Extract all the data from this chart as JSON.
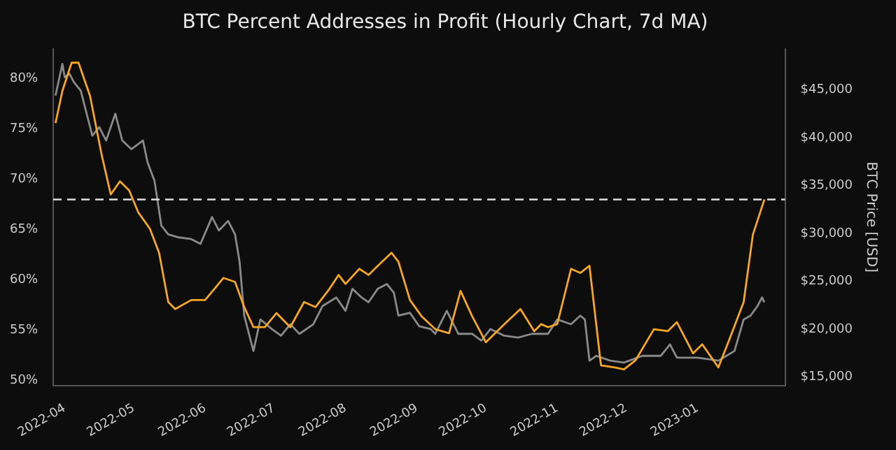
{
  "chart_data": {
    "type": "line",
    "title": "BTC Percent Addresses in Profit (Hourly Chart, 7d MA)",
    "y2label": "BTC Price [USD]",
    "xlim": [
      "2022-03-27",
      "2023-02-08"
    ],
    "xticks": [
      "2022-04",
      "2022-05",
      "2022-06",
      "2022-07",
      "2022-08",
      "2022-09",
      "2022-10",
      "2022-11",
      "2022-12",
      "2023-01"
    ],
    "ylim": [
      49.5,
      83
    ],
    "yticks": [
      {
        "value": 50,
        "label": "50%"
      },
      {
        "value": 55,
        "label": "55%"
      },
      {
        "value": 60,
        "label": "60%"
      },
      {
        "value": 65,
        "label": "65%"
      },
      {
        "value": 70,
        "label": "70%"
      },
      {
        "value": 75,
        "label": "75%"
      },
      {
        "value": 80,
        "label": "80%"
      }
    ],
    "y2lim": [
      14100,
      49300
    ],
    "y2ticks": [
      {
        "value": 15000,
        "label": "$15,000"
      },
      {
        "value": 20000,
        "label": "$20,000"
      },
      {
        "value": 25000,
        "label": "$25,000"
      },
      {
        "value": 30000,
        "label": "$30,000"
      },
      {
        "value": 35000,
        "label": "$35,000"
      },
      {
        "value": 40000,
        "label": "$40,000"
      },
      {
        "value": 45000,
        "label": "$45,000"
      }
    ],
    "grid": false,
    "legend": false,
    "marker": "none",
    "ref_lines": [
      {
        "axis": "y",
        "value": 68,
        "label": null,
        "color": "#e0e0e0",
        "line_style": "dashed"
      }
    ],
    "series": [
      {
        "color": "#f5a623",
        "axis": "y",
        "x": [
          "2022-03-28",
          "2022-03-31",
          "2022-04-04",
          "2022-04-07",
          "2022-04-12",
          "2022-04-17",
          "2022-04-21",
          "2022-04-25",
          "2022-04-29",
          "2022-05-03",
          "2022-05-08",
          "2022-05-12",
          "2022-05-16",
          "2022-05-19",
          "2022-05-26",
          "2022-06-01",
          "2022-06-05",
          "2022-06-09",
          "2022-06-14",
          "2022-06-18",
          "2022-06-22",
          "2022-06-27",
          "2022-07-02",
          "2022-07-08",
          "2022-07-14",
          "2022-07-19",
          "2022-07-25",
          "2022-07-29",
          "2022-08-01",
          "2022-08-07",
          "2022-08-11",
          "2022-08-15",
          "2022-08-21",
          "2022-08-24",
          "2022-08-29",
          "2022-09-03",
          "2022-09-09",
          "2022-09-15",
          "2022-09-20",
          "2022-09-25",
          "2022-10-01",
          "2022-10-09",
          "2022-10-16",
          "2022-10-22",
          "2022-10-25",
          "2022-10-28",
          "2022-11-01",
          "2022-11-07",
          "2022-11-11",
          "2022-11-15",
          "2022-11-20",
          "2022-11-26",
          "2022-11-30",
          "2022-12-05",
          "2022-12-13",
          "2022-12-19",
          "2022-12-23",
          "2022-12-30",
          "2023-01-03",
          "2023-01-10",
          "2023-01-15",
          "2023-01-21",
          "2023-01-25",
          "2023-01-30"
        ],
        "values": [
          75.6,
          78.8,
          81.6,
          81.6,
          78.3,
          72.5,
          68.5,
          69.8,
          68.9,
          66.7,
          65.1,
          62.7,
          57.8,
          57.1,
          58.0,
          58.0,
          59.1,
          60.2,
          59.8,
          57.3,
          55.3,
          55.3,
          56.7,
          55.3,
          57.8,
          57.3,
          59.1,
          60.5,
          59.6,
          61.1,
          60.5,
          61.4,
          62.7,
          61.8,
          58.0,
          56.4,
          55.1,
          54.7,
          58.9,
          56.4,
          53.8,
          55.6,
          57.1,
          54.9,
          55.6,
          55.3,
          55.6,
          61.1,
          60.7,
          61.4,
          51.5,
          51.3,
          51.1,
          52.0,
          55.1,
          54.9,
          55.8,
          52.7,
          53.6,
          51.3,
          54.2,
          57.8,
          64.5,
          68.0
        ]
      },
      {
        "color": "#8a8a8a",
        "axis": "y2",
        "x": [
          "2022-03-28",
          "2022-03-31",
          "2022-04-01",
          "2022-04-03",
          "2022-04-05",
          "2022-04-08",
          "2022-04-10",
          "2022-04-13",
          "2022-04-16",
          "2022-04-19",
          "2022-04-23",
          "2022-04-26",
          "2022-04-30",
          "2022-05-05",
          "2022-05-07",
          "2022-05-10",
          "2022-05-13",
          "2022-05-16",
          "2022-05-20",
          "2022-05-26",
          "2022-05-30",
          "2022-06-04",
          "2022-06-07",
          "2022-06-11",
          "2022-06-14",
          "2022-06-16",
          "2022-06-18",
          "2022-06-22",
          "2022-06-25",
          "2022-06-30",
          "2022-07-04",
          "2022-07-08",
          "2022-07-12",
          "2022-07-18",
          "2022-07-22",
          "2022-07-28",
          "2022-08-01",
          "2022-08-04",
          "2022-08-08",
          "2022-08-11",
          "2022-08-15",
          "2022-08-19",
          "2022-08-22",
          "2022-08-24",
          "2022-08-29",
          "2022-09-02",
          "2022-09-07",
          "2022-09-09",
          "2022-09-14",
          "2022-09-19",
          "2022-09-25",
          "2022-09-29",
          "2022-10-03",
          "2022-10-09",
          "2022-10-15",
          "2022-10-21",
          "2022-10-28",
          "2022-11-01",
          "2022-11-07",
          "2022-11-11",
          "2022-11-13",
          "2022-11-15",
          "2022-11-18",
          "2022-11-24",
          "2022-11-30",
          "2022-12-08",
          "2022-12-16",
          "2022-12-20",
          "2022-12-23",
          "2023-01-01",
          "2023-01-10",
          "2023-01-17",
          "2023-01-21",
          "2023-01-24",
          "2023-01-27",
          "2023-01-29",
          "2023-01-30"
        ],
        "values": [
          44400,
          47700,
          46300,
          46700,
          45800,
          44900,
          43000,
          40200,
          41100,
          39700,
          42500,
          39700,
          38800,
          39700,
          37400,
          35500,
          30800,
          29900,
          29600,
          29400,
          28900,
          31700,
          30300,
          31300,
          29900,
          27000,
          21400,
          17700,
          21000,
          20000,
          19300,
          20500,
          19500,
          20500,
          22400,
          23300,
          21900,
          24200,
          23300,
          22800,
          24200,
          24700,
          23800,
          21400,
          21700,
          20300,
          20000,
          19500,
          21900,
          19500,
          19500,
          18800,
          20000,
          19300,
          19100,
          19500,
          19500,
          21000,
          20500,
          21400,
          21000,
          16700,
          17200,
          16700,
          16500,
          17200,
          17200,
          18400,
          17000,
          17000,
          16700,
          17700,
          21000,
          21400,
          22400,
          23300,
          22800
        ]
      }
    ]
  }
}
